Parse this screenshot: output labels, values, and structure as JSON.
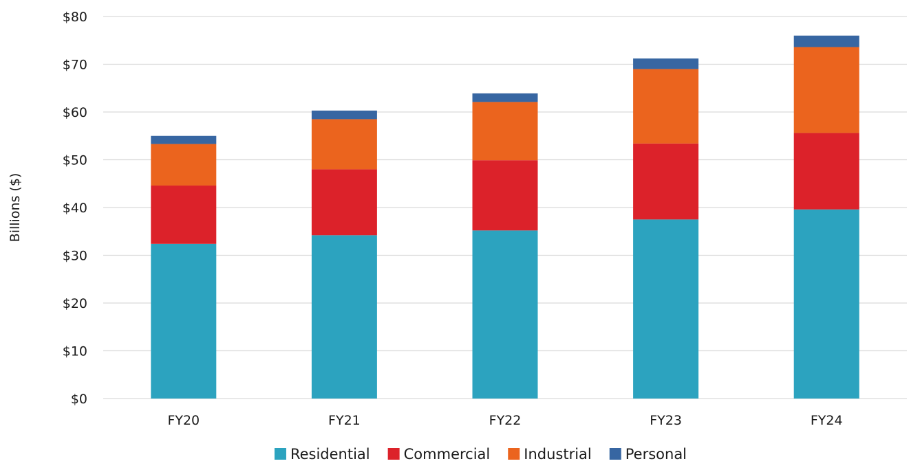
{
  "chart_data": {
    "type": "bar",
    "stacked": true,
    "title": "",
    "xlabel": "",
    "ylabel": "Billions ($)",
    "ylim": [
      0,
      80
    ],
    "y_ticks": [
      0,
      10,
      20,
      30,
      40,
      50,
      60,
      70,
      80
    ],
    "y_tick_prefix": "$",
    "grid": true,
    "legend_position": "bottom",
    "categories": [
      "FY20",
      "FY21",
      "FY22",
      "FY23",
      "FY24"
    ],
    "series": [
      {
        "name": "Residential",
        "color": "#2ca3bf",
        "values": [
          32.4,
          34.2,
          35.2,
          37.5,
          39.6
        ]
      },
      {
        "name": "Commercial",
        "color": "#dc222a",
        "values": [
          12.2,
          13.8,
          14.7,
          15.9,
          16.0
        ]
      },
      {
        "name": "Industrial",
        "color": "#eb641e",
        "values": [
          8.7,
          10.5,
          12.2,
          15.6,
          18.0
        ]
      },
      {
        "name": "Personal",
        "color": "#3766a2",
        "values": [
          1.7,
          1.8,
          1.8,
          2.2,
          2.4
        ]
      }
    ]
  }
}
